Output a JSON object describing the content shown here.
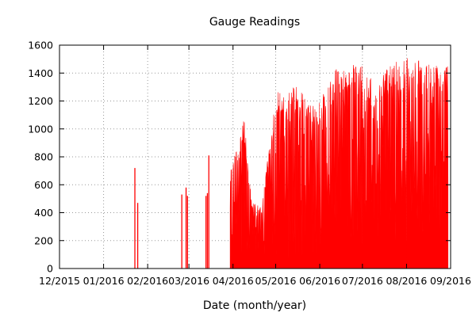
{
  "chart_data": {
    "type": "bar",
    "title": "Gauge Readings",
    "xlabel": "Date (month/year)",
    "ylabel": "",
    "ylim": [
      0,
      1600
    ],
    "yticks": [
      0,
      200,
      400,
      600,
      800,
      1000,
      1200,
      1400,
      1600
    ],
    "xlim": [
      "2015-12-01",
      "2016-09-01"
    ],
    "xticks": [
      {
        "date": "2015-12-01",
        "label": "12/2015"
      },
      {
        "date": "2016-01-01",
        "label": "01/2016"
      },
      {
        "date": "2016-02-01",
        "label": "02/2016"
      },
      {
        "date": "2016-03-01",
        "label": "03/2016"
      },
      {
        "date": "2016-04-01",
        "label": "04/2016"
      },
      {
        "date": "2016-05-01",
        "label": "05/2016"
      },
      {
        "date": "2016-06-01",
        "label": "06/2016"
      },
      {
        "date": "2016-07-01",
        "label": "07/2016"
      },
      {
        "date": "2016-08-01",
        "label": "08/2016"
      },
      {
        "date": "2016-09-01",
        "label": "09/2016"
      }
    ],
    "grid": true,
    "bar_color": "#ff0000",
    "sparse_points": [
      {
        "date": "2016-01-23",
        "value": 720
      },
      {
        "date": "2016-01-25",
        "value": 470
      },
      {
        "date": "2016-02-25",
        "value": 530
      },
      {
        "date": "2016-02-28",
        "value": 580
      },
      {
        "date": "2016-02-29",
        "value": 520
      },
      {
        "date": "2016-03-13",
        "value": 520
      },
      {
        "date": "2016-03-14",
        "value": 540
      },
      {
        "date": "2016-03-15",
        "value": 810
      }
    ],
    "dense_segments": [
      {
        "start": "2016-03-30",
        "end": "2016-05-10",
        "baseline": 90,
        "envelope": [
          [
            0,
            700
          ],
          [
            5,
            870
          ],
          [
            10,
            1080
          ],
          [
            15,
            480
          ],
          [
            22,
            440
          ],
          [
            27,
            860
          ],
          [
            33,
            1270
          ],
          [
            38,
            1260
          ],
          [
            41,
            1150
          ]
        ]
      },
      {
        "start": "2016-05-10",
        "end": "2016-06-01",
        "baseline": 80,
        "envelope": [
          [
            0,
            1300
          ],
          [
            6,
            1300
          ],
          [
            12,
            1250
          ],
          [
            16,
            1200
          ],
          [
            20,
            1150
          ],
          [
            22,
            1200
          ]
        ]
      },
      {
        "start": "2016-06-01",
        "end": "2016-07-01",
        "baseline": 180,
        "envelope": [
          [
            0,
            1200
          ],
          [
            5,
            1320
          ],
          [
            10,
            1420
          ],
          [
            15,
            1450
          ],
          [
            20,
            1400
          ],
          [
            25,
            1500
          ],
          [
            30,
            1480
          ]
        ]
      },
      {
        "start": "2016-07-01",
        "end": "2016-08-01",
        "baseline": 200,
        "envelope": [
          [
            0,
            1430
          ],
          [
            5,
            1390
          ],
          [
            10,
            1300
          ],
          [
            15,
            1420
          ],
          [
            20,
            1480
          ],
          [
            25,
            1500
          ],
          [
            31,
            1510
          ]
        ]
      },
      {
        "start": "2016-08-01",
        "end": "2016-09-05",
        "baseline": 240,
        "envelope": [
          [
            0,
            1510
          ],
          [
            6,
            1500
          ],
          [
            12,
            1510
          ],
          [
            18,
            1490
          ],
          [
            24,
            1480
          ],
          [
            30,
            1460
          ],
          [
            35,
            1450
          ]
        ]
      }
    ]
  }
}
